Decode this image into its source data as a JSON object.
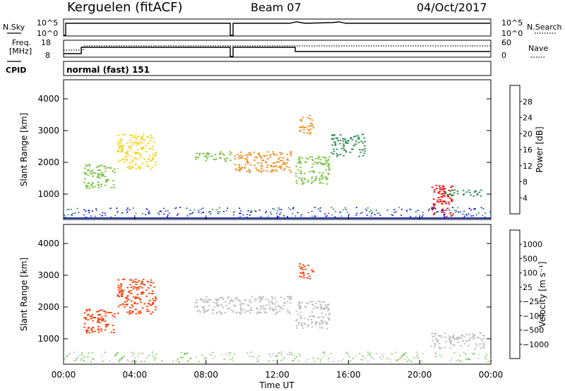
{
  "header": {
    "station": "Kerguelen (fitACF)",
    "beam": "Beam 07",
    "date": "04/Oct/2017"
  },
  "nsky_panel": {
    "left_label": "N.Sky",
    "left_ticks": [
      "10^5",
      "10^0"
    ],
    "right_label": "N.Search",
    "right_ticks": [
      "10^5",
      "10^0"
    ]
  },
  "freq_panel": {
    "left_label_line1": "Freq.",
    "left_label_line2": "[MHz]",
    "left_ticks": [
      "18",
      "8"
    ],
    "right_label": "Nave",
    "right_ticks": [
      "60",
      "0"
    ],
    "cpid_label": "CPID",
    "cpid_text": "normal (fast) 151"
  },
  "colors": {
    "power_scale": [
      "#0000ff",
      "#1f48b4",
      "#2e8b57",
      "#7ac142",
      "#f2d41c",
      "#f28c1c",
      "#ff4500",
      "#ff0000"
    ],
    "velocity_scale": [
      "#ff0000",
      "#ff3a00",
      "#ff8c00",
      "#ffcc33",
      "#bebebe",
      "#6ccf3e",
      "#2e8b57",
      "#1f48b4",
      "#1f2bb4"
    ],
    "ground_scatter": "#bebebe"
  },
  "chart_data": [
    {
      "type": "heatmap",
      "name": "power-panel",
      "ylabel": "Slant Range [km]",
      "yticks": [
        "1000",
        "2000",
        "3000",
        "4000"
      ],
      "ylim": [
        200,
        4600
      ],
      "xlim": [
        0,
        24
      ],
      "colorbar": {
        "label": "Power [dB]",
        "ticks": [
          "4",
          "8",
          "12",
          "16",
          "20",
          "24",
          "28"
        ]
      },
      "regions": [
        {
          "t0": 1.1,
          "t1": 2.9,
          "r0": 1200,
          "r1": 1950,
          "value": 12
        },
        {
          "t0": 3.0,
          "t1": 5.2,
          "r0": 1800,
          "r1": 2900,
          "value": 16
        },
        {
          "t0": 7.3,
          "t1": 9.4,
          "r0": 2050,
          "r1": 2350,
          "value": 12
        },
        {
          "t0": 9.5,
          "t1": 12.8,
          "r0": 1700,
          "r1": 2350,
          "value": 20
        },
        {
          "t0": 13.0,
          "t1": 14.9,
          "r0": 1300,
          "r1": 2200,
          "value": 14
        },
        {
          "t0": 13.2,
          "t1": 14.0,
          "r0": 2900,
          "r1": 3500,
          "value": 22
        },
        {
          "t0": 15.0,
          "t1": 16.9,
          "r0": 2200,
          "r1": 2900,
          "value": 8
        },
        {
          "t0": 20.6,
          "t1": 21.8,
          "r0": 300,
          "r1": 1300,
          "value": 28
        },
        {
          "t0": 21.3,
          "t1": 23.6,
          "r0": 950,
          "r1": 1150,
          "value": 10
        }
      ]
    },
    {
      "type": "heatmap",
      "name": "velocity-panel",
      "xlabel": "Time UT",
      "xticks": [
        "00:00",
        "04:00",
        "08:00",
        "12:00",
        "16:00",
        "20:00",
        "00:00"
      ],
      "ylabel": "Slant Range [km]",
      "yticks": [
        "1000",
        "2000",
        "3000",
        "4000"
      ],
      "ylim": [
        200,
        4600
      ],
      "xlim": [
        0,
        24
      ],
      "colorbar": {
        "label": "Velocity [m s⁻¹]",
        "ticks": [
          "1000",
          "500",
          "100",
          "25",
          "−25",
          "−100",
          "−500",
          "−1000"
        ]
      },
      "regions": [
        {
          "t0": 1.1,
          "t1": 2.9,
          "r0": 1200,
          "r1": 1950,
          "value": -300
        },
        {
          "t0": 3.0,
          "t1": 5.2,
          "r0": 1800,
          "r1": 2900,
          "value": -400
        },
        {
          "t0": 7.3,
          "t1": 12.8,
          "r0": 1800,
          "r1": 2350,
          "value": 0
        },
        {
          "t0": 13.0,
          "t1": 14.9,
          "r0": 1300,
          "r1": 2200,
          "value": 0
        },
        {
          "t0": 13.2,
          "t1": 14.0,
          "r0": 2900,
          "r1": 3400,
          "value": -400
        },
        {
          "t0": 20.6,
          "t1": 23.6,
          "r0": 700,
          "r1": 1200,
          "value": 0
        }
      ]
    }
  ]
}
